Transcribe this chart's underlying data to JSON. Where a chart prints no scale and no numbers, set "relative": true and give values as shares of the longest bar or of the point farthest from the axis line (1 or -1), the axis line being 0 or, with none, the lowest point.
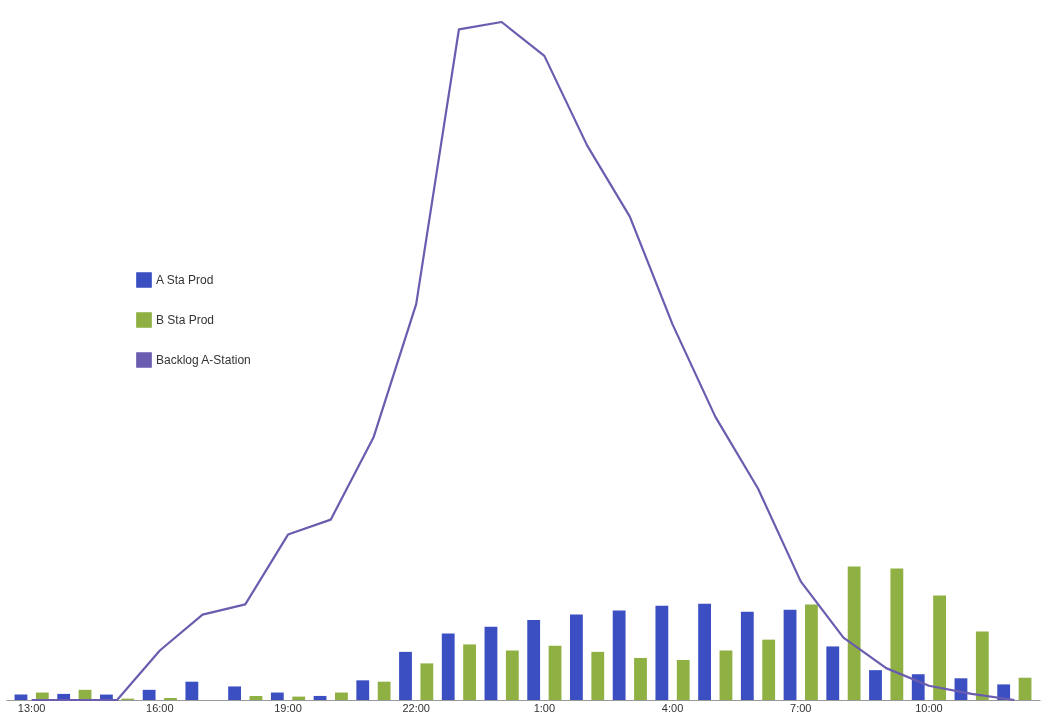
{
  "chart_data": {
    "type": "bar",
    "relative": true,
    "legend": "left",
    "categories": [
      "13:00",
      null,
      null,
      "16:00",
      null,
      null,
      "19:00",
      null,
      null,
      "22:00",
      null,
      null,
      "1:00",
      null,
      null,
      "4:00",
      null,
      null,
      "7:00",
      null,
      null,
      "10:00",
      null,
      null
    ],
    "series": [
      {
        "name": "A Sta Prod",
        "color": "#3b4fc2",
        "values": [
          0.008,
          0.009,
          0.008,
          0.015,
          0.027,
          0.02,
          0.011,
          0.006,
          0.029,
          0.071,
          0.098,
          0.108,
          0.118,
          0.126,
          0.132,
          0.139,
          0.142,
          0.13,
          0.133,
          0.079,
          0.044,
          0.038,
          0.032,
          0.023
        ]
      },
      {
        "name": "B Sta Prod",
        "color": "#8fb042",
        "values": [
          0.011,
          0.015,
          0.002,
          0.003,
          0,
          0.006,
          0.005,
          0.011,
          0.027,
          0.054,
          0.082,
          0.073,
          0.08,
          0.071,
          0.062,
          0.059,
          0.073,
          0.089,
          0.141,
          0.197,
          0.194,
          0.154,
          0.101,
          0.033
        ]
      },
      {
        "name": "Backlog A-Station",
        "type": "line",
        "color": "#6a5cae",
        "values": [
          0,
          0,
          0,
          0.073,
          0.126,
          0.141,
          0.244,
          0.266,
          0.387,
          0.584,
          0.989,
          1.0,
          0.95,
          0.818,
          0.713,
          0.554,
          0.418,
          0.312,
          0.175,
          0.092,
          0.047,
          0.021,
          0.009,
          0
        ]
      }
    ]
  }
}
